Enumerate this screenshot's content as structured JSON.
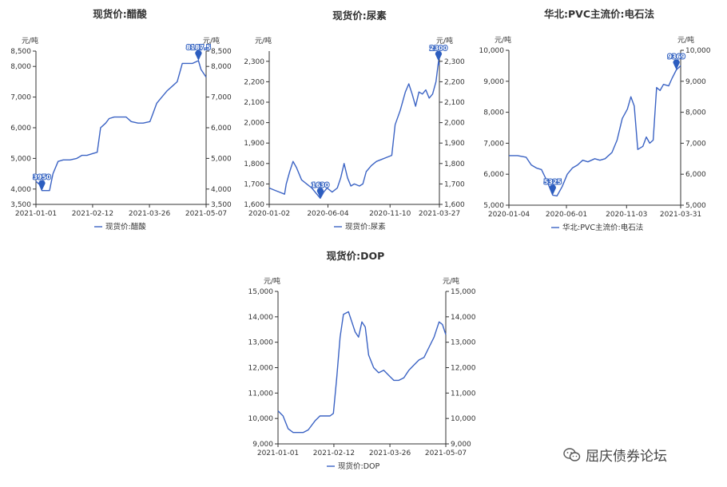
{
  "watermark": {
    "text": "屈庆债券论坛",
    "icon": "wechat-icon"
  },
  "chart_data": [
    {
      "type": "line",
      "title": "现货价:醋酸",
      "unit": "元/吨",
      "legend": "现货价:醋酸",
      "ylim": [
        3500,
        8500
      ],
      "yticks": [
        "3,500",
        "4,000",
        "5,000",
        "6,000",
        "7,000",
        "8,000",
        "8,500"
      ],
      "ytick_values": [
        3500,
        4000,
        5000,
        6000,
        7000,
        8000,
        8500
      ],
      "xticks": [
        "2021-01-01",
        "2021-02-12",
        "2021-03-26",
        "2021-05-07"
      ],
      "xtick_pos": [
        0,
        0.333,
        0.667,
        1.0
      ],
      "color": "#3b63c4",
      "markers": [
        {
          "label": "3950",
          "x": 0.035,
          "y": 3950,
          "type": "min"
        },
        {
          "label": "8187.5",
          "x": 0.955,
          "y": 8187.5,
          "type": "max"
        }
      ],
      "points": [
        [
          0,
          4250
        ],
        [
          0.02,
          4150
        ],
        [
          0.035,
          3950
        ],
        [
          0.05,
          3950
        ],
        [
          0.08,
          3950
        ],
        [
          0.1,
          4500
        ],
        [
          0.13,
          4900
        ],
        [
          0.16,
          4950
        ],
        [
          0.2,
          4950
        ],
        [
          0.24,
          5000
        ],
        [
          0.27,
          5100
        ],
        [
          0.3,
          5100
        ],
        [
          0.33,
          5150
        ],
        [
          0.36,
          5200
        ],
        [
          0.38,
          6000
        ],
        [
          0.41,
          6150
        ],
        [
          0.43,
          6300
        ],
        [
          0.46,
          6350
        ],
        [
          0.5,
          6350
        ],
        [
          0.53,
          6350
        ],
        [
          0.56,
          6200
        ],
        [
          0.6,
          6150
        ],
        [
          0.63,
          6150
        ],
        [
          0.67,
          6200
        ],
        [
          0.69,
          6500
        ],
        [
          0.71,
          6800
        ],
        [
          0.74,
          7000
        ],
        [
          0.77,
          7200
        ],
        [
          0.8,
          7350
        ],
        [
          0.83,
          7500
        ],
        [
          0.86,
          8100
        ],
        [
          0.88,
          8100
        ],
        [
          0.9,
          8100
        ],
        [
          0.92,
          8100
        ],
        [
          0.955,
          8187.5
        ],
        [
          0.97,
          7900
        ],
        [
          1.0,
          7650
        ]
      ]
    },
    {
      "type": "line",
      "title": "现货价:尿素",
      "unit": "元/吨",
      "legend": "现货价:尿素",
      "ylim": [
        1600,
        2350
      ],
      "yticks": [
        "1,600",
        "1,700",
        "1,800",
        "1,900",
        "2,000",
        "2,100",
        "2,200",
        "2,300"
      ],
      "ytick_values": [
        1600,
        1700,
        1800,
        1900,
        2000,
        2100,
        2200,
        2300
      ],
      "xticks": [
        "2020-01-02",
        "2020-06-04",
        "2020-11-10",
        "2021-03-27"
      ],
      "xtick_pos": [
        0,
        0.345,
        0.71,
        1.0
      ],
      "color": "#3b63c4",
      "markers": [
        {
          "label": "1630",
          "x": 0.3,
          "y": 1630,
          "type": "min"
        },
        {
          "label": "2300",
          "x": 0.995,
          "y": 2300,
          "type": "max"
        }
      ],
      "points": [
        [
          0,
          1680
        ],
        [
          0.03,
          1670
        ],
        [
          0.06,
          1660
        ],
        [
          0.09,
          1650
        ],
        [
          0.1,
          1700
        ],
        [
          0.12,
          1760
        ],
        [
          0.14,
          1810
        ],
        [
          0.16,
          1780
        ],
        [
          0.19,
          1720
        ],
        [
          0.22,
          1700
        ],
        [
          0.25,
          1680
        ],
        [
          0.28,
          1650
        ],
        [
          0.3,
          1630
        ],
        [
          0.32,
          1660
        ],
        [
          0.34,
          1680
        ],
        [
          0.37,
          1660
        ],
        [
          0.4,
          1680
        ],
        [
          0.42,
          1730
        ],
        [
          0.44,
          1800
        ],
        [
          0.46,
          1730
        ],
        [
          0.48,
          1690
        ],
        [
          0.5,
          1700
        ],
        [
          0.53,
          1690
        ],
        [
          0.55,
          1700
        ],
        [
          0.57,
          1760
        ],
        [
          0.6,
          1790
        ],
        [
          0.63,
          1810
        ],
        [
          0.66,
          1820
        ],
        [
          0.69,
          1830
        ],
        [
          0.72,
          1840
        ],
        [
          0.74,
          1990
        ],
        [
          0.77,
          2060
        ],
        [
          0.8,
          2150
        ],
        [
          0.82,
          2190
        ],
        [
          0.84,
          2140
        ],
        [
          0.86,
          2080
        ],
        [
          0.88,
          2150
        ],
        [
          0.9,
          2140
        ],
        [
          0.92,
          2160
        ],
        [
          0.94,
          2120
        ],
        [
          0.96,
          2140
        ],
        [
          0.98,
          2200
        ],
        [
          0.995,
          2300
        ],
        [
          1.0,
          2280
        ]
      ]
    },
    {
      "type": "line",
      "title": "华北:PVC主流价:电石法",
      "unit": "元/吨",
      "legend": "华北:PVC主流价:电石法",
      "ylim": [
        5000,
        10000
      ],
      "yticks": [
        "5,000",
        "6,000",
        "7,000",
        "8,000",
        "9,000",
        "10,000"
      ],
      "ytick_values": [
        5000,
        6000,
        7000,
        8000,
        9000,
        10000
      ],
      "xticks": [
        "2020-01-04",
        "2020-06-01",
        "2020-11-03",
        "2021-03-31"
      ],
      "xtick_pos": [
        0,
        0.335,
        0.685,
        1.0
      ],
      "color": "#3b63c4",
      "markers": [
        {
          "label": "5325",
          "x": 0.255,
          "y": 5325,
          "type": "min"
        },
        {
          "label": "9369",
          "x": 0.975,
          "y": 9369,
          "type": "max"
        }
      ],
      "points": [
        [
          0,
          6600
        ],
        [
          0.05,
          6600
        ],
        [
          0.1,
          6550
        ],
        [
          0.13,
          6300
        ],
        [
          0.16,
          6200
        ],
        [
          0.19,
          6150
        ],
        [
          0.22,
          5800
        ],
        [
          0.255,
          5325
        ],
        [
          0.28,
          5300
        ],
        [
          0.31,
          5600
        ],
        [
          0.34,
          6000
        ],
        [
          0.37,
          6200
        ],
        [
          0.4,
          6300
        ],
        [
          0.43,
          6450
        ],
        [
          0.46,
          6400
        ],
        [
          0.5,
          6500
        ],
        [
          0.53,
          6450
        ],
        [
          0.56,
          6500
        ],
        [
          0.6,
          6700
        ],
        [
          0.63,
          7100
        ],
        [
          0.66,
          7800
        ],
        [
          0.69,
          8100
        ],
        [
          0.71,
          8500
        ],
        [
          0.73,
          8200
        ],
        [
          0.75,
          6800
        ],
        [
          0.78,
          6900
        ],
        [
          0.8,
          7200
        ],
        [
          0.82,
          7000
        ],
        [
          0.84,
          7100
        ],
        [
          0.86,
          8800
        ],
        [
          0.88,
          8700
        ],
        [
          0.9,
          8900
        ],
        [
          0.93,
          8850
        ],
        [
          0.95,
          9100
        ],
        [
          0.975,
          9369
        ],
        [
          1.0,
          9500
        ]
      ]
    },
    {
      "type": "line",
      "title": "现货价:DOP",
      "unit": "元/吨",
      "legend": "现货价:DOP",
      "ylim": [
        9000,
        15000
      ],
      "yticks": [
        "9,000",
        "10,000",
        "11,000",
        "12,000",
        "13,000",
        "14,000",
        "15,000"
      ],
      "ytick_values": [
        9000,
        10000,
        11000,
        12000,
        13000,
        14000,
        15000
      ],
      "xticks": [
        "2021-01-01",
        "2021-02-12",
        "2021-03-26",
        "2021-05-07"
      ],
      "xtick_pos": [
        0,
        0.333,
        0.667,
        1.0
      ],
      "color": "#3b63c4",
      "markers": [],
      "points": [
        [
          0,
          10300
        ],
        [
          0.03,
          10100
        ],
        [
          0.06,
          9600
        ],
        [
          0.09,
          9450
        ],
        [
          0.12,
          9450
        ],
        [
          0.15,
          9450
        ],
        [
          0.18,
          9550
        ],
        [
          0.22,
          9900
        ],
        [
          0.25,
          10100
        ],
        [
          0.28,
          10100
        ],
        [
          0.31,
          10100
        ],
        [
          0.33,
          10200
        ],
        [
          0.35,
          11600
        ],
        [
          0.37,
          13200
        ],
        [
          0.39,
          14100
        ],
        [
          0.42,
          14200
        ],
        [
          0.44,
          13800
        ],
        [
          0.46,
          13400
        ],
        [
          0.48,
          13200
        ],
        [
          0.5,
          13800
        ],
        [
          0.52,
          13600
        ],
        [
          0.54,
          12500
        ],
        [
          0.57,
          12000
        ],
        [
          0.6,
          11800
        ],
        [
          0.63,
          11900
        ],
        [
          0.66,
          11700
        ],
        [
          0.69,
          11500
        ],
        [
          0.72,
          11500
        ],
        [
          0.75,
          11600
        ],
        [
          0.78,
          11900
        ],
        [
          0.81,
          12100
        ],
        [
          0.84,
          12300
        ],
        [
          0.87,
          12400
        ],
        [
          0.9,
          12800
        ],
        [
          0.93,
          13200
        ],
        [
          0.96,
          13800
        ],
        [
          0.98,
          13700
        ],
        [
          1.0,
          13300
        ]
      ]
    }
  ]
}
